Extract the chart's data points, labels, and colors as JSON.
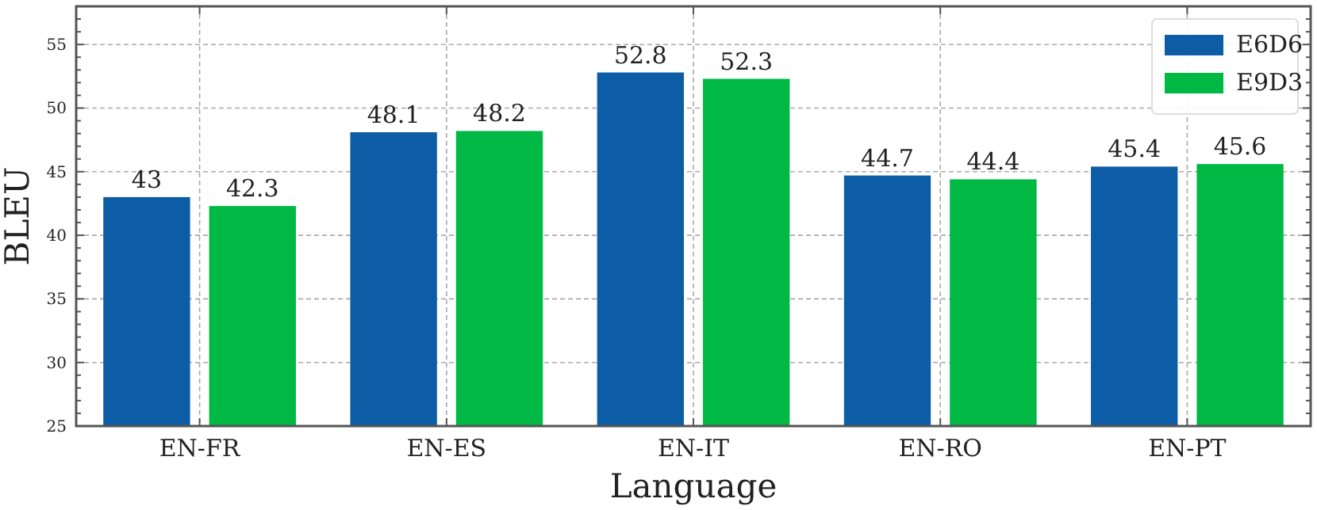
{
  "chart_data": {
    "type": "bar",
    "xlabel": "Language",
    "ylabel": "BLEU",
    "categories": [
      "EN-FR",
      "EN-ES",
      "EN-IT",
      "EN-RO",
      "EN-PT"
    ],
    "series": [
      {
        "name": "E6D6",
        "color": "#0c5da5",
        "values": [
          43,
          48.1,
          52.8,
          44.7,
          45.4
        ]
      },
      {
        "name": "E9D3",
        "color": "#00b945",
        "values": [
          42.3,
          48.2,
          52.3,
          44.4,
          45.6
        ]
      }
    ],
    "ylim": [
      25,
      58
    ],
    "yticks": [
      25,
      30,
      35,
      40,
      45,
      50,
      55
    ],
    "grid": true,
    "legend": "top right",
    "data_labels": true
  }
}
